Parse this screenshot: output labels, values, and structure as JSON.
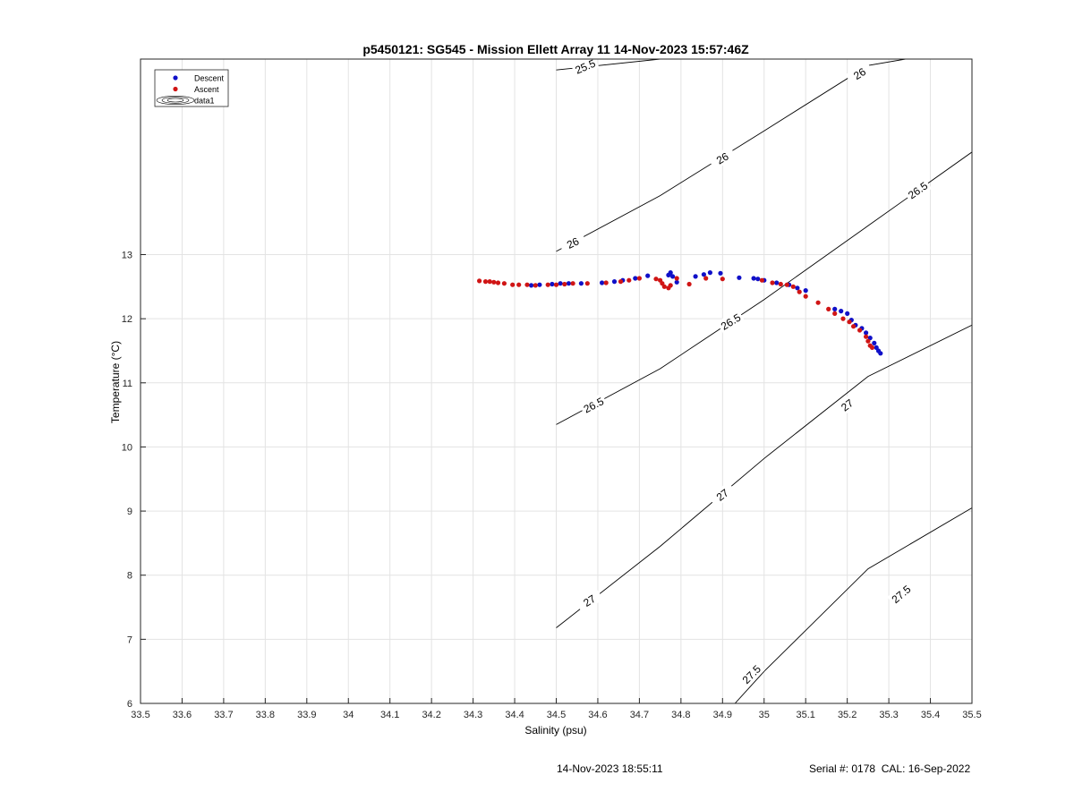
{
  "chart_data": {
    "type": "scatter",
    "title": "p5450121: SG545 - Mission Ellett Array 11 14-Nov-2023 15:57:46Z",
    "xlabel": "Salinity (psu)",
    "ylabel": "Temperature (°C)",
    "xlim": [
      33.5,
      35.5
    ],
    "ylim": [
      6,
      16.05
    ],
    "xticks": [
      "33.5",
      "33.6",
      "33.7",
      "33.8",
      "33.9",
      "34",
      "34.1",
      "34.2",
      "34.3",
      "34.4",
      "34.5",
      "34.6",
      "34.7",
      "34.8",
      "34.9",
      "35",
      "35.1",
      "35.2",
      "35.3",
      "35.4",
      "35.5"
    ],
    "yticks": [
      "6",
      "7",
      "8",
      "9",
      "10",
      "11",
      "12",
      "13"
    ],
    "grid": true,
    "legend_position": "top-left",
    "legend": [
      {
        "name": "Descent",
        "marker": "dot",
        "color": "#1010c8"
      },
      {
        "name": "Ascent",
        "marker": "dot",
        "color": "#d01515"
      },
      {
        "name": "data1",
        "marker": "contour"
      }
    ],
    "series": [
      {
        "name": "Descent",
        "color": "#1010c8",
        "points": [
          [
            34.44,
            12.52
          ],
          [
            34.46,
            12.53
          ],
          [
            34.49,
            12.54
          ],
          [
            34.51,
            12.55
          ],
          [
            34.53,
            12.55
          ],
          [
            34.56,
            12.55
          ],
          [
            34.61,
            12.56
          ],
          [
            34.64,
            12.58
          ],
          [
            34.66,
            12.6
          ],
          [
            34.69,
            12.63
          ],
          [
            34.72,
            12.67
          ],
          [
            34.77,
            12.68
          ],
          [
            34.775,
            12.72
          ],
          [
            34.78,
            12.66
          ],
          [
            34.79,
            12.57
          ],
          [
            34.835,
            12.66
          ],
          [
            34.855,
            12.69
          ],
          [
            34.87,
            12.72
          ],
          [
            34.895,
            12.71
          ],
          [
            34.94,
            12.64
          ],
          [
            34.975,
            12.63
          ],
          [
            34.985,
            12.62
          ],
          [
            35.0,
            12.6
          ],
          [
            35.03,
            12.56
          ],
          [
            35.06,
            12.53
          ],
          [
            35.08,
            12.48
          ],
          [
            35.1,
            12.44
          ],
          [
            35.17,
            12.15
          ],
          [
            35.185,
            12.12
          ],
          [
            35.2,
            12.08
          ],
          [
            35.21,
            11.98
          ],
          [
            35.22,
            11.9
          ],
          [
            35.235,
            11.85
          ],
          [
            35.245,
            11.78
          ],
          [
            35.255,
            11.7
          ],
          [
            35.265,
            11.62
          ],
          [
            35.27,
            11.55
          ],
          [
            35.275,
            11.5
          ],
          [
            35.28,
            11.46
          ]
        ]
      },
      {
        "name": "Ascent",
        "color": "#d01515",
        "points": [
          [
            34.315,
            12.59
          ],
          [
            34.33,
            12.58
          ],
          [
            34.34,
            12.58
          ],
          [
            34.35,
            12.57
          ],
          [
            34.36,
            12.56
          ],
          [
            34.375,
            12.55
          ],
          [
            34.395,
            12.53
          ],
          [
            34.41,
            12.53
          ],
          [
            34.43,
            12.53
          ],
          [
            34.45,
            12.52
          ],
          [
            34.48,
            12.53
          ],
          [
            34.5,
            12.53
          ],
          [
            34.52,
            12.54
          ],
          [
            34.54,
            12.55
          ],
          [
            34.575,
            12.55
          ],
          [
            34.62,
            12.56
          ],
          [
            34.655,
            12.58
          ],
          [
            34.675,
            12.6
          ],
          [
            34.7,
            12.63
          ],
          [
            34.74,
            12.62
          ],
          [
            34.75,
            12.6
          ],
          [
            34.755,
            12.55
          ],
          [
            34.76,
            12.5
          ],
          [
            34.77,
            12.48
          ],
          [
            34.775,
            12.52
          ],
          [
            34.79,
            12.63
          ],
          [
            34.82,
            12.54
          ],
          [
            34.86,
            12.63
          ],
          [
            34.9,
            12.62
          ],
          [
            34.995,
            12.6
          ],
          [
            35.02,
            12.56
          ],
          [
            35.04,
            12.54
          ],
          [
            35.055,
            12.53
          ],
          [
            35.07,
            12.5
          ],
          [
            35.085,
            12.42
          ],
          [
            35.1,
            12.35
          ],
          [
            35.13,
            12.25
          ],
          [
            35.155,
            12.15
          ],
          [
            35.17,
            12.08
          ],
          [
            35.19,
            12.0
          ],
          [
            35.205,
            11.95
          ],
          [
            35.215,
            11.88
          ],
          [
            35.23,
            11.82
          ],
          [
            35.245,
            11.72
          ],
          [
            35.25,
            11.65
          ],
          [
            35.255,
            11.58
          ],
          [
            35.26,
            11.55
          ]
        ]
      }
    ],
    "contours": [
      {
        "label": "25.5",
        "points": [
          [
            34.5,
            15.88
          ],
          [
            34.75,
            16.05
          ]
        ],
        "labels_at": [
          [
            34.57,
            15.93,
            -23
          ]
        ]
      },
      {
        "label": "26",
        "points": [
          [
            34.5,
            13.05
          ],
          [
            34.75,
            13.92
          ],
          [
            35.0,
            14.93
          ],
          [
            35.25,
            15.95
          ],
          [
            35.34,
            16.05
          ]
        ],
        "labels_at": [
          [
            34.54,
            13.18,
            -26
          ],
          [
            34.9,
            14.5,
            -30
          ],
          [
            35.23,
            15.82,
            -33
          ]
        ]
      },
      {
        "label": "26.5",
        "points": [
          [
            34.5,
            10.35
          ],
          [
            34.75,
            11.22
          ],
          [
            35.0,
            12.3
          ],
          [
            35.25,
            13.45
          ],
          [
            35.5,
            14.6
          ]
        ],
        "labels_at": [
          [
            34.59,
            10.65,
            -27
          ],
          [
            34.92,
            11.95,
            -32
          ],
          [
            35.37,
            14.0,
            -35
          ]
        ]
      },
      {
        "label": "27",
        "points": [
          [
            34.5,
            7.18
          ],
          [
            34.75,
            8.45
          ],
          [
            35.0,
            9.82
          ],
          [
            35.25,
            11.1
          ],
          [
            35.5,
            11.9
          ]
        ],
        "labels_at": [
          [
            34.58,
            7.6,
            -33
          ],
          [
            34.9,
            9.25,
            -38
          ],
          [
            35.2,
            10.65,
            -37
          ]
        ]
      },
      {
        "label": "27.5",
        "points": [
          [
            34.93,
            6.0
          ],
          [
            35.0,
            6.5
          ],
          [
            35.25,
            8.1
          ],
          [
            35.5,
            9.05
          ]
        ],
        "labels_at": [
          [
            34.97,
            6.45,
            -45
          ],
          [
            35.33,
            7.7,
            -40
          ]
        ]
      }
    ]
  },
  "footer": {
    "timestamp": "14-Nov-2023 18:55:11",
    "serial": "Serial #: 0178  CAL: 16-Sep-2022"
  }
}
